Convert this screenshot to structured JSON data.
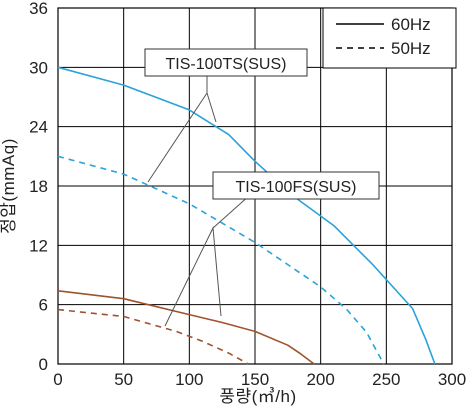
{
  "chart_data": {
    "type": "line",
    "title": "",
    "xlabel": "풍량(㎥/h)",
    "ylabel": "정압(mmAq)",
    "xlim": [
      0,
      300
    ],
    "ylim": [
      0,
      36
    ],
    "x_ticks": [
      "0",
      "50",
      "100",
      "150",
      "200",
      "250",
      "300"
    ],
    "y_ticks": [
      "0",
      "6",
      "12",
      "18",
      "24",
      "30",
      "36"
    ],
    "grid": true,
    "legend_position": "top-right",
    "legend": [
      {
        "label": "60Hz",
        "style": "solid"
      },
      {
        "label": "50Hz",
        "style": "dashed"
      }
    ],
    "annotations": [
      {
        "label": "TIS-100TS(SUS)",
        "targets": "upper pair"
      },
      {
        "label": "TIS-100FS(SUS)",
        "targets": "lower pair"
      }
    ],
    "series": [
      {
        "model": "TIS-100TS(SUS)",
        "frequency": "60Hz",
        "style": "solid",
        "color": "#29a3d9",
        "x": [
          0,
          50,
          100,
          130,
          150,
          180,
          210,
          240,
          270,
          280,
          287
        ],
        "y": [
          30,
          28.2,
          25.7,
          23.2,
          20.5,
          16.9,
          14,
          10,
          5.6,
          2.5,
          0
        ]
      },
      {
        "model": "TIS-100TS(SUS)",
        "frequency": "50Hz",
        "style": "dashed",
        "color": "#29a3d9",
        "x": [
          0,
          50,
          100,
          150,
          200,
          220,
          235,
          248
        ],
        "y": [
          21,
          19.2,
          16.2,
          12.3,
          7.8,
          5.5,
          3.2,
          0
        ]
      },
      {
        "model": "TIS-100FS(SUS)",
        "frequency": "60Hz",
        "style": "solid",
        "color": "#a0522d",
        "x": [
          0,
          50,
          100,
          125,
          150,
          175,
          185,
          195
        ],
        "y": [
          7.4,
          6.6,
          5,
          4.2,
          3.3,
          1.9,
          1,
          0
        ]
      },
      {
        "model": "TIS-100FS(SUS)",
        "frequency": "50Hz",
        "style": "dashed",
        "color": "#a0522d",
        "x": [
          0,
          50,
          90,
          110,
          130,
          145
        ],
        "y": [
          5.5,
          4.8,
          3.3,
          2.3,
          1.1,
          0
        ]
      }
    ]
  }
}
